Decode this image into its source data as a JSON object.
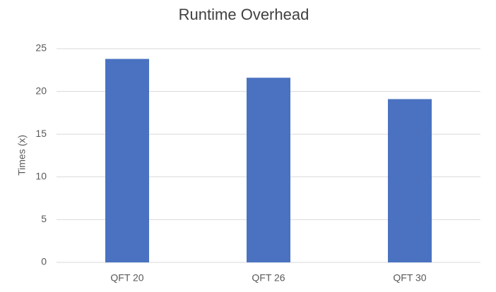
{
  "chart_data": {
    "type": "bar",
    "title": "Runtime Overhead",
    "y_label": "Times (x)",
    "categories": [
      "QFT 20",
      "QFT 26",
      "QFT 30"
    ],
    "values": [
      23.8,
      21.6,
      19.1
    ],
    "color": "#4a72c0",
    "ylim": [
      0,
      25
    ],
    "yticks": [
      0,
      5,
      10,
      15,
      20,
      25
    ],
    "grid": true
  }
}
